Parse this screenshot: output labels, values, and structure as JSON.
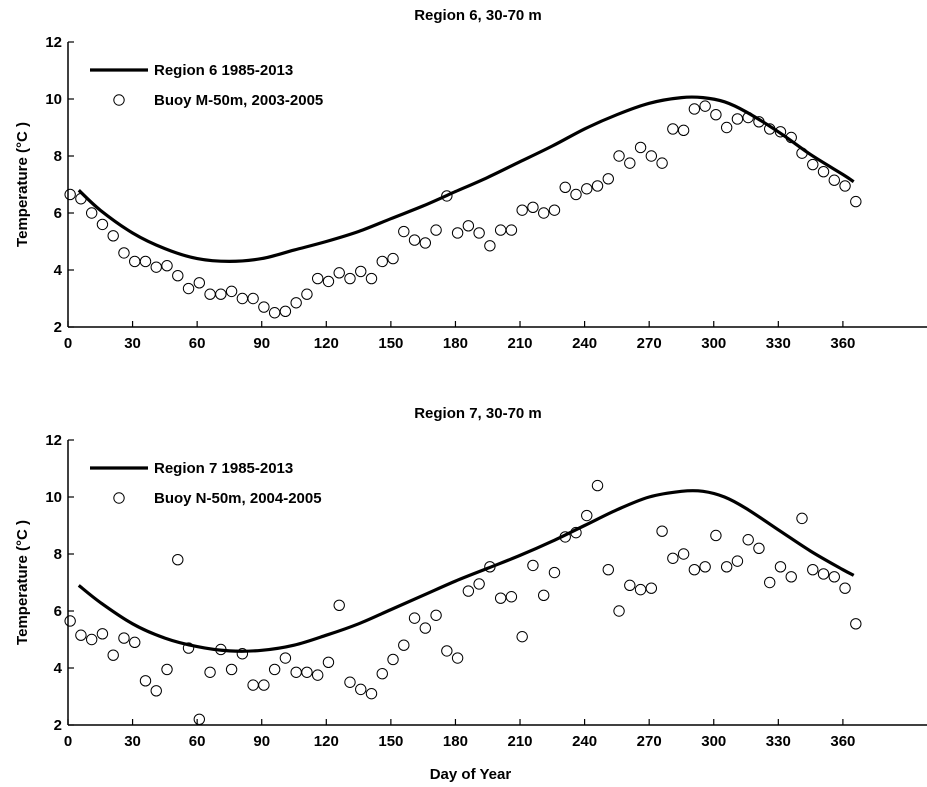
{
  "chart_data": [
    {
      "type": "line",
      "title": "Region 6, 30-70 m",
      "xlabel": "",
      "ylabel": "Temperature (°C )",
      "xlim": [
        0,
        400
      ],
      "ylim": [
        2,
        12
      ],
      "xticks": [
        0,
        30,
        60,
        90,
        120,
        150,
        180,
        210,
        240,
        270,
        300,
        330,
        360
      ],
      "yticks": [
        2,
        4,
        6,
        8,
        10,
        12
      ],
      "legend_position": "top-left",
      "series": [
        {
          "name": "Region 6 1985-2013",
          "kind": "line",
          "x": [
            5,
            15,
            30,
            45,
            60,
            75,
            90,
            105,
            120,
            135,
            150,
            165,
            180,
            195,
            210,
            225,
            240,
            255,
            270,
            285,
            295,
            305,
            315,
            330,
            345,
            360,
            365
          ],
          "y": [
            6.8,
            6.1,
            5.3,
            4.75,
            4.4,
            4.3,
            4.4,
            4.7,
            5.0,
            5.35,
            5.8,
            6.25,
            6.75,
            7.25,
            7.8,
            8.35,
            8.95,
            9.45,
            9.85,
            10.05,
            10.05,
            9.9,
            9.55,
            8.85,
            8.05,
            7.35,
            7.1
          ]
        },
        {
          "name": "Buoy M-50m, 2003-2005",
          "kind": "scatter",
          "x": [
            1,
            6,
            11,
            16,
            21,
            26,
            31,
            36,
            41,
            46,
            51,
            56,
            61,
            66,
            71,
            76,
            81,
            86,
            91,
            96,
            101,
            106,
            111,
            116,
            121,
            126,
            131,
            136,
            141,
            146,
            151,
            156,
            161,
            166,
            171,
            176,
            181,
            186,
            191,
            196,
            201,
            206,
            211,
            216,
            221,
            226,
            231,
            236,
            241,
            246,
            251,
            256,
            261,
            266,
            271,
            276,
            281,
            286,
            291,
            296,
            301,
            306,
            311,
            316,
            321,
            326,
            331,
            336,
            341,
            346,
            351,
            356,
            361,
            366
          ],
          "y": [
            6.65,
            6.5,
            6.0,
            5.6,
            5.2,
            4.6,
            4.3,
            4.3,
            4.1,
            4.15,
            3.8,
            3.35,
            3.55,
            3.15,
            3.15,
            3.25,
            3.0,
            3.0,
            2.7,
            2.5,
            2.55,
            2.85,
            3.15,
            3.7,
            3.6,
            3.9,
            3.7,
            3.95,
            3.7,
            4.3,
            4.4,
            5.35,
            5.05,
            4.95,
            5.4,
            6.6,
            5.3,
            5.55,
            5.3,
            4.85,
            5.4,
            5.4,
            6.1,
            6.2,
            6.0,
            6.1,
            6.9,
            6.65,
            6.85,
            6.95,
            7.2,
            8.0,
            7.75,
            8.3,
            8.0,
            7.75,
            8.95,
            8.9,
            9.65,
            9.75,
            9.45,
            9.0,
            9.3,
            9.35,
            9.2,
            8.95,
            8.85,
            8.65,
            8.1,
            7.7,
            7.45,
            7.15,
            6.95,
            6.4
          ]
        }
      ]
    },
    {
      "type": "line",
      "title": "Region 7, 30-70 m",
      "xlabel": "Day of Year",
      "ylabel": "Temperature (°C )",
      "xlim": [
        0,
        400
      ],
      "ylim": [
        2,
        12
      ],
      "xticks": [
        0,
        30,
        60,
        90,
        120,
        150,
        180,
        210,
        240,
        270,
        300,
        330,
        360
      ],
      "yticks": [
        2,
        4,
        6,
        8,
        10,
        12
      ],
      "legend_position": "top-left",
      "series": [
        {
          "name": "Region 7 1985-2013",
          "kind": "line",
          "x": [
            5,
            15,
            30,
            45,
            60,
            75,
            90,
            105,
            120,
            135,
            150,
            165,
            180,
            195,
            210,
            225,
            240,
            255,
            270,
            285,
            295,
            305,
            315,
            330,
            345,
            360,
            365
          ],
          "y": [
            6.9,
            6.3,
            5.55,
            5.05,
            4.75,
            4.6,
            4.62,
            4.8,
            5.15,
            5.55,
            6.05,
            6.55,
            7.05,
            7.5,
            7.95,
            8.45,
            9.0,
            9.55,
            10.0,
            10.2,
            10.2,
            10.0,
            9.6,
            8.85,
            8.1,
            7.45,
            7.25
          ]
        },
        {
          "name": "Buoy N-50m, 2004-2005",
          "kind": "scatter",
          "x": [
            1,
            6,
            11,
            16,
            21,
            26,
            31,
            36,
            41,
            46,
            51,
            56,
            61,
            66,
            71,
            76,
            81,
            86,
            91,
            96,
            101,
            106,
            111,
            116,
            121,
            126,
            131,
            136,
            141,
            146,
            151,
            156,
            161,
            166,
            171,
            176,
            181,
            186,
            191,
            196,
            201,
            206,
            211,
            216,
            221,
            226,
            231,
            236,
            241,
            246,
            251,
            256,
            261,
            266,
            271,
            276,
            281,
            286,
            291,
            296,
            301,
            306,
            311,
            316,
            321,
            326,
            331,
            336,
            341,
            346,
            351,
            356,
            361,
            366
          ],
          "y": [
            5.65,
            5.15,
            5.0,
            5.2,
            4.45,
            5.05,
            4.9,
            3.55,
            3.2,
            3.95,
            7.8,
            4.7,
            2.2,
            3.85,
            4.65,
            3.95,
            4.5,
            3.4,
            3.4,
            3.95,
            4.35,
            3.85,
            3.85,
            3.75,
            4.2,
            6.2,
            3.5,
            3.25,
            3.1,
            3.8,
            4.3,
            4.8,
            5.75,
            5.4,
            5.85,
            4.6,
            4.35,
            6.7,
            6.95,
            7.55,
            6.45,
            6.5,
            5.1,
            7.6,
            6.55,
            7.35,
            8.6,
            8.75,
            9.35,
            10.4,
            7.45,
            6.0,
            6.9,
            6.75,
            6.8,
            8.8,
            7.85,
            8.0,
            7.45,
            7.55,
            8.65,
            7.55,
            7.75,
            8.5,
            8.2,
            7.0,
            7.55,
            7.2,
            9.25,
            7.45,
            7.3,
            7.2,
            6.8,
            5.55
          ]
        }
      ]
    }
  ]
}
